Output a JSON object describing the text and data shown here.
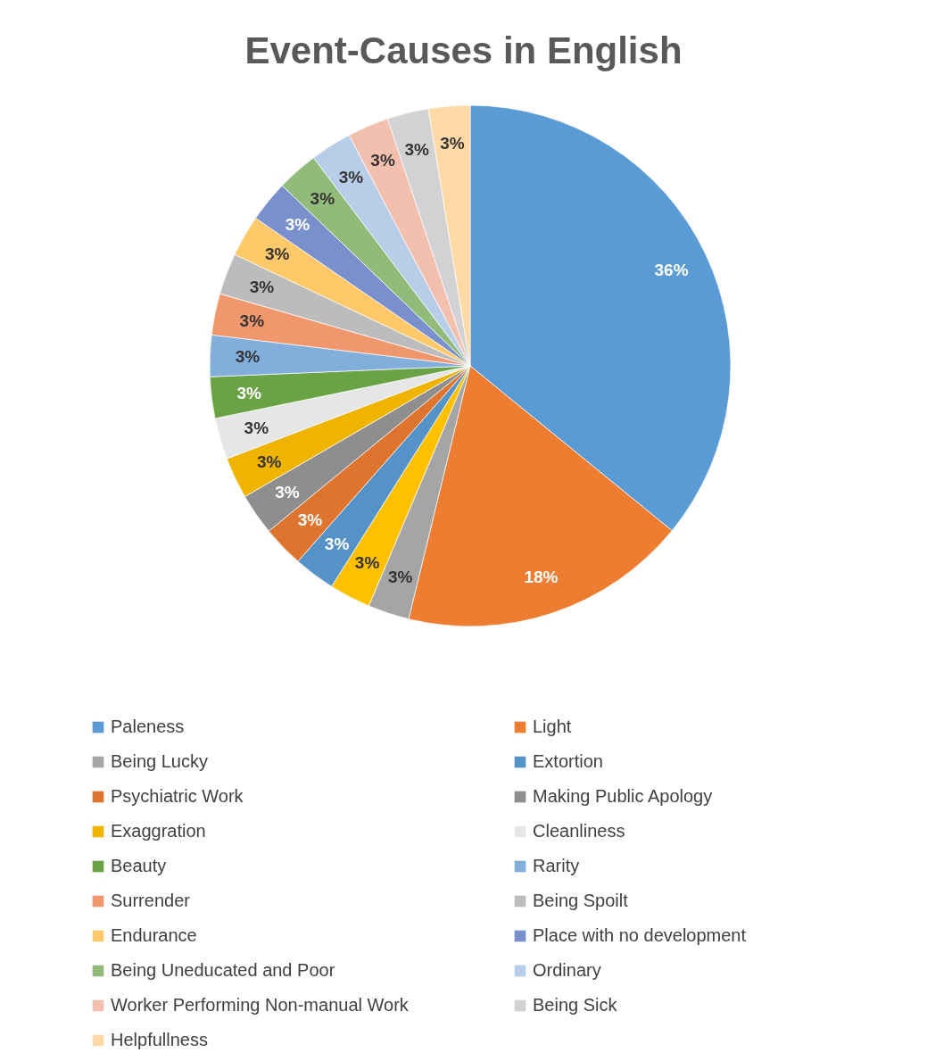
{
  "chart_data": {
    "type": "pie",
    "title": "Event-Causes in English",
    "categories": [
      "Paleness",
      "Light",
      "Being Lucky",
      null,
      "Extortion",
      "Psychiatric Work",
      "Making Public Apology",
      "Exaggration",
      "Cleanliness",
      "Beauty",
      "Rarity",
      "Surrender",
      "Being Spoilt",
      "Endurance",
      "Place with no development",
      "Being Uneducated and Poor",
      "Ordinary",
      "Worker Performing Non-manual Work",
      "Being Sick",
      "Helpfullness"
    ],
    "values": [
      35.9,
      17.9,
      2.567,
      2.567,
      2.567,
      2.567,
      2.567,
      2.567,
      2.567,
      2.567,
      2.567,
      2.567,
      2.567,
      2.567,
      2.567,
      2.567,
      2.567,
      2.567,
      2.567,
      2.567
    ],
    "value_labels": [
      "36%",
      "18%",
      "3%",
      "3%",
      "3%",
      "3%",
      "3%",
      "3%",
      "3%",
      "3%",
      "3%",
      "3%",
      "3%",
      "3%",
      "3%",
      "3%",
      "3%",
      "3%",
      "3%",
      "3%"
    ],
    "colors": [
      "#5b9bd5",
      "#ed7d31",
      "#a5a5a5",
      "#ffc000",
      "#5592c8",
      "#df742e",
      "#8e8e8e",
      "#efb400",
      "#e6e6e6",
      "#6aa345",
      "#82aedc",
      "#f0976e",
      "#bcbcbc",
      "#ffc96a",
      "#7990cd",
      "#92ba78",
      "#b7cde8",
      "#f3c0b0",
      "#d2d2d2",
      "#ffdaa6"
    ],
    "legend": "bottom"
  }
}
